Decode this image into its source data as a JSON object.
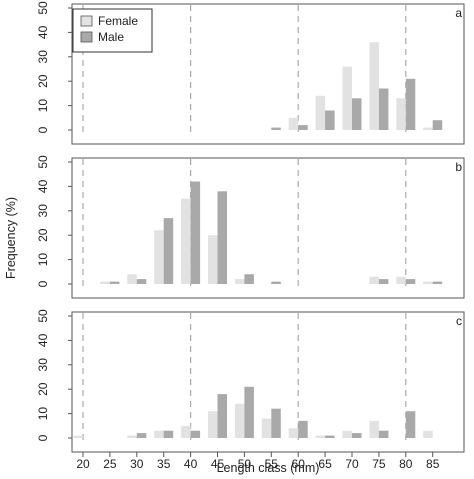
{
  "chart_data": {
    "type": "bar",
    "xlabel": "Length class (mm)",
    "ylabel": "Frequency (%)",
    "categories": [
      "20",
      "25",
      "30",
      "35",
      "40",
      "45",
      "50",
      "55",
      "60",
      "65",
      "70",
      "75",
      "80",
      "85"
    ],
    "ylim": [
      0,
      50
    ],
    "yticks": [
      "0",
      "10",
      "20",
      "30",
      "40",
      "50"
    ],
    "reference_lines_x": [
      "20",
      "40",
      "60",
      "80"
    ],
    "legend": {
      "placement": "top-left",
      "entries": [
        "Female",
        "Male"
      ]
    },
    "colors": {
      "Female": "#e2e2e2",
      "Male": "#a9a9a9",
      "frame": "#555555",
      "reference_line": "#aaaaaa"
    },
    "panels": [
      {
        "letter": "a",
        "series": [
          {
            "name": "Female",
            "values": [
              0,
              0,
              0,
              0,
              0,
              0,
              0,
              0,
              5,
              14,
              26,
              36,
              13,
              1
            ]
          },
          {
            "name": "Male",
            "values": [
              0,
              0,
              0,
              0,
              0,
              0,
              0,
              1,
              2,
              8,
              13,
              17,
              21,
              4
            ]
          }
        ]
      },
      {
        "letter": "b",
        "series": [
          {
            "name": "Female",
            "values": [
              0,
              1,
              4,
              22,
              35,
              20,
              2,
              0,
              0,
              0,
              0,
              3,
              3,
              1
            ]
          },
          {
            "name": "Male",
            "values": [
              0,
              1,
              2,
              27,
              42,
              38,
              4,
              1,
              0,
              0,
              0,
              2,
              2,
              1
            ]
          }
        ]
      },
      {
        "letter": "c",
        "series": [
          {
            "name": "Female",
            "values": [
              1,
              0,
              1,
              3,
              5,
              11,
              14,
              8,
              4,
              1,
              3,
              7,
              0,
              3
            ]
          },
          {
            "name": "Male",
            "values": [
              0,
              0,
              2,
              3,
              3,
              18,
              21,
              12,
              7,
              1,
              2,
              3,
              11,
              0
            ]
          }
        ]
      }
    ]
  }
}
